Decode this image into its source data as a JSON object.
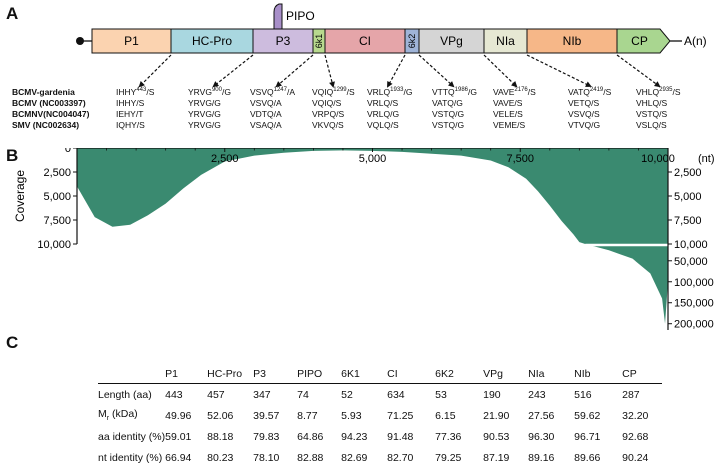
{
  "panels": {
    "a": "A",
    "b": "B",
    "c": "C"
  },
  "genome": {
    "segments": [
      {
        "name": "P1",
        "color": "#fbd3b0"
      },
      {
        "name": "HC-Pro",
        "color": "#a9d7e0"
      },
      {
        "name": "P3",
        "color": "#cdbcde"
      },
      {
        "name": "6k1",
        "color": "#b8d98e"
      },
      {
        "name": "CI",
        "color": "#e5a5a9"
      },
      {
        "name": "6k2",
        "color": "#9fb4d8"
      },
      {
        "name": "VPg",
        "color": "#d5d5d5"
      },
      {
        "name": "NIa",
        "color": "#e6e8d3"
      },
      {
        "name": "NIb",
        "color": "#f6b788"
      },
      {
        "name": "CP",
        "color": "#a9d690"
      }
    ],
    "pipo_label": "PIPO",
    "polya_label": "A(n)"
  },
  "cleavage": {
    "viruses": [
      "BCMV-gardenia",
      "BCMV  (NC003397)",
      "BCMNV(NC004047)",
      "SMV    (NC002634)"
    ],
    "sites": [
      {
        "top_base": "IHHY",
        "sup": "443",
        "tail": "/S",
        "rest": [
          "IHHY/S",
          "IEHY/T",
          "IQHY/S"
        ]
      },
      {
        "top_base": "YRVG",
        "sup": "900",
        "tail": "/G",
        "rest": [
          "YRVG/G",
          "YRVG/G",
          "YRVG/G"
        ]
      },
      {
        "top_base": "VSVQ",
        "sup": "1247",
        "tail": "/A",
        "rest": [
          "VSVQ/A",
          "VDTQ/A",
          "VSAQ/A"
        ]
      },
      {
        "top_base": "VQIQ",
        "sup": "1299",
        "tail": "/S",
        "rest": [
          "VQIQ/S",
          "VRPQ/S",
          "VKVQ/S"
        ]
      },
      {
        "top_base": "VRLQ",
        "sup": "1933",
        "tail": "/G",
        "rest": [
          "VRLQ/S",
          "VRLQ/G",
          "VQLQ/S"
        ]
      },
      {
        "top_base": "VTTQ",
        "sup": "1986",
        "tail": "/G",
        "rest": [
          "VATQ/G",
          "VSTQ/G",
          "VSTQ/G"
        ]
      },
      {
        "top_base": "VAVE",
        "sup": "2176",
        "tail": "/S",
        "rest": [
          "VAVE/S",
          "VELE/S",
          "VEME/S"
        ]
      },
      {
        "top_base": "VATQ",
        "sup": "2419",
        "tail": "/S",
        "rest": [
          "VETQ/S",
          "VSVQ/S",
          "VTVQ/G"
        ]
      },
      {
        "top_base": "VHLQ",
        "sup": "2935",
        "tail": "/S",
        "rest": [
          "VHLQ/S",
          "VSTQ/S",
          "VSLQ/S"
        ]
      }
    ]
  },
  "chart_data": {
    "type": "area",
    "xlabel": "(nt)",
    "ylabel": "Coverage",
    "x_ticks": [
      "2,500",
      "5,000",
      "7,500",
      "10,000"
    ],
    "xlim": [
      0,
      10000
    ],
    "y_ticks_left": [
      "0",
      "2,500",
      "5,000",
      "7,500",
      "10,000"
    ],
    "y_ticks_right_upper": [
      "2,500",
      "5,000",
      "7,500",
      "10,000"
    ],
    "y_ticks_right_lower": [
      "50,000",
      "100,000",
      "150,000",
      "200,000"
    ],
    "ylim_upper": [
      0,
      10000
    ],
    "ylim_lower": [
      10000,
      215000
    ],
    "color": "#3a8a70",
    "x": [
      0,
      300,
      600,
      900,
      1200,
      1500,
      1800,
      2100,
      2500,
      3000,
      3500,
      4000,
      4500,
      5000,
      5500,
      6000,
      6500,
      7000,
      7300,
      7600,
      7800,
      8000,
      8200,
      8400,
      8500,
      8600,
      9000,
      9400,
      9700,
      9900,
      9950,
      10000
    ],
    "y": [
      4000,
      7200,
      8200,
      8000,
      7000,
      5800,
      4200,
      2800,
      1400,
      800,
      500,
      300,
      250,
      300,
      400,
      600,
      800,
      1300,
      2000,
      3200,
      4500,
      6000,
      7600,
      9000,
      9800,
      10000,
      25000,
      45000,
      80000,
      140000,
      200000,
      100000
    ]
  },
  "table": {
    "headers": [
      "P1",
      "HC-Pro",
      "P3",
      "PIPO",
      "6K1",
      "CI",
      "6K2",
      "VPg",
      "NIa",
      "NIb",
      "CP"
    ],
    "rows": [
      {
        "label": "Length (aa)",
        "values": [
          "443",
          "457",
          "347",
          "74",
          "52",
          "634",
          "53",
          "190",
          "243",
          "516",
          "287"
        ]
      },
      {
        "label_main": "M",
        "label_sub": "r",
        "label_rest": " (kDa)",
        "values": [
          "49.96",
          "52.06",
          "39.57",
          "8.77",
          "5.93",
          "71.25",
          "6.15",
          "21.90",
          "27.56",
          "59.62",
          "32.20"
        ]
      },
      {
        "label": "aa identity (%)",
        "values": [
          "59.01",
          "88.18",
          "79.83",
          "64.86",
          "94.23",
          "91.48",
          "77.36",
          "90.53",
          "96.30",
          "96.71",
          "92.68"
        ]
      },
      {
        "label": "nt identity (%)",
        "values": [
          "66.94",
          "80.23",
          "78.10",
          "82.88",
          "82.69",
          "82.70",
          "79.25",
          "87.19",
          "89.16",
          "89.66",
          "90.24"
        ]
      }
    ]
  }
}
